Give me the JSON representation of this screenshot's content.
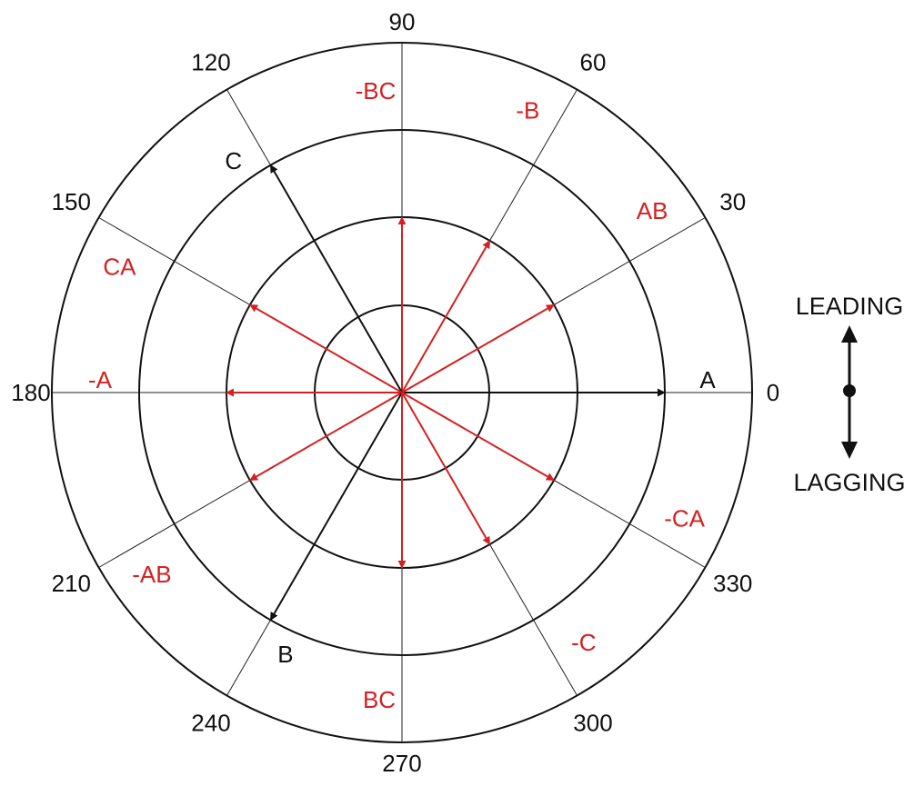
{
  "diagram": {
    "colors": {
      "black": "#111111",
      "red": "#d42020",
      "grid": "#222222"
    },
    "angle_labels": [
      "0",
      "30",
      "60",
      "90",
      "120",
      "150",
      "180",
      "210",
      "240",
      "270",
      "300",
      "330"
    ],
    "phasors": [
      {
        "label": "A",
        "angle_deg": 0,
        "color": "black"
      },
      {
        "label": "AB",
        "angle_deg": 30,
        "color": "red"
      },
      {
        "label": "-B",
        "angle_deg": 60,
        "color": "red"
      },
      {
        "label": "-BC",
        "angle_deg": 90,
        "color": "red"
      },
      {
        "label": "C",
        "angle_deg": 120,
        "color": "black"
      },
      {
        "label": "CA",
        "angle_deg": 150,
        "color": "red"
      },
      {
        "label": "-A",
        "angle_deg": 180,
        "color": "red"
      },
      {
        "label": "-AB",
        "angle_deg": 210,
        "color": "red"
      },
      {
        "label": "B",
        "angle_deg": 240,
        "color": "black"
      },
      {
        "label": "BC",
        "angle_deg": 270,
        "color": "red"
      },
      {
        "label": "-C",
        "angle_deg": 300,
        "color": "red"
      },
      {
        "label": "-CA",
        "angle_deg": 330,
        "color": "red"
      }
    ],
    "legend": {
      "leading": "LEADING",
      "lagging": "LAGGING"
    }
  }
}
